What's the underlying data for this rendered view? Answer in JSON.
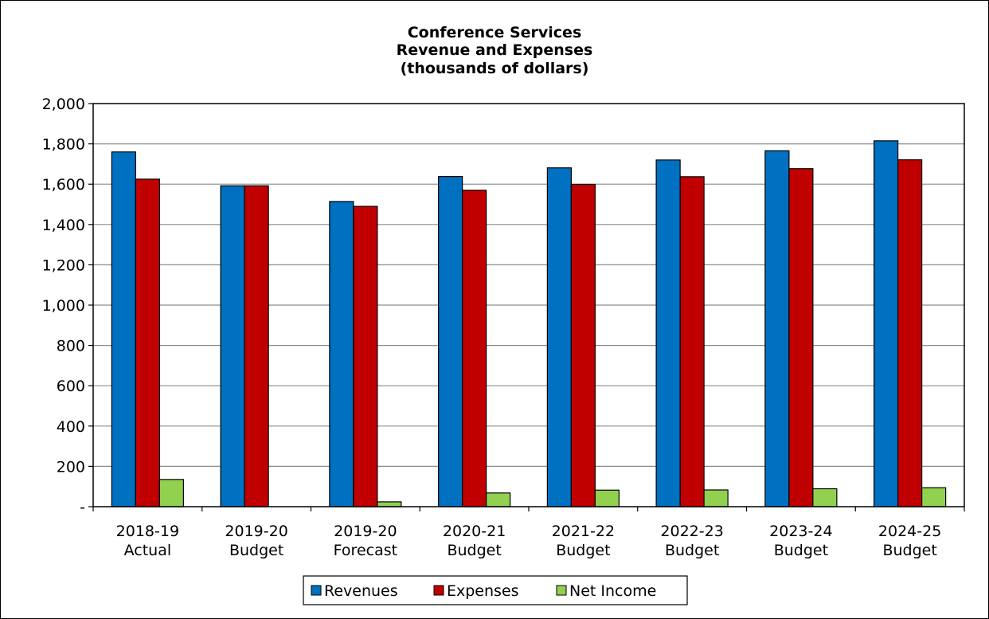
{
  "chart_data": {
    "type": "bar",
    "title": [
      "Conference Services",
      "Revenue and Expenses",
      "(thousands of dollars)"
    ],
    "xlabel": "",
    "ylabel": "",
    "categories": [
      [
        "2018-19",
        "Actual"
      ],
      [
        "2019-20",
        "Budget"
      ],
      [
        "2019-20",
        "Forecast"
      ],
      [
        "2020-21",
        "Budget"
      ],
      [
        "2021-22",
        "Budget"
      ],
      [
        "2022-23",
        "Budget"
      ],
      [
        "2023-24",
        "Budget"
      ],
      [
        "2024-25",
        "Budget"
      ]
    ],
    "series": [
      {
        "name": "Revenues",
        "color": "#0070c0",
        "values": [
          1760,
          1592,
          1514,
          1638,
          1681,
          1720,
          1766,
          1815
        ]
      },
      {
        "name": "Expenses",
        "color": "#c00000",
        "values": [
          1625,
          1592,
          1490,
          1570,
          1599,
          1637,
          1677,
          1721
        ]
      },
      {
        "name": "Net Income",
        "color": "#92d050",
        "values": [
          135,
          0,
          24,
          68,
          82,
          83,
          89,
          94
        ]
      }
    ],
    "ylim": [
      0,
      2000
    ],
    "yticks": [
      0,
      200,
      400,
      600,
      800,
      1000,
      1200,
      1400,
      1600,
      1800,
      2000
    ],
    "ytick_labels": [
      "-",
      "200",
      "400",
      "600",
      "800",
      "1,000",
      "1,200",
      "1,400",
      "1,600",
      "1,800",
      "2,000"
    ],
    "grid": true,
    "legend_position": "bottom"
  }
}
